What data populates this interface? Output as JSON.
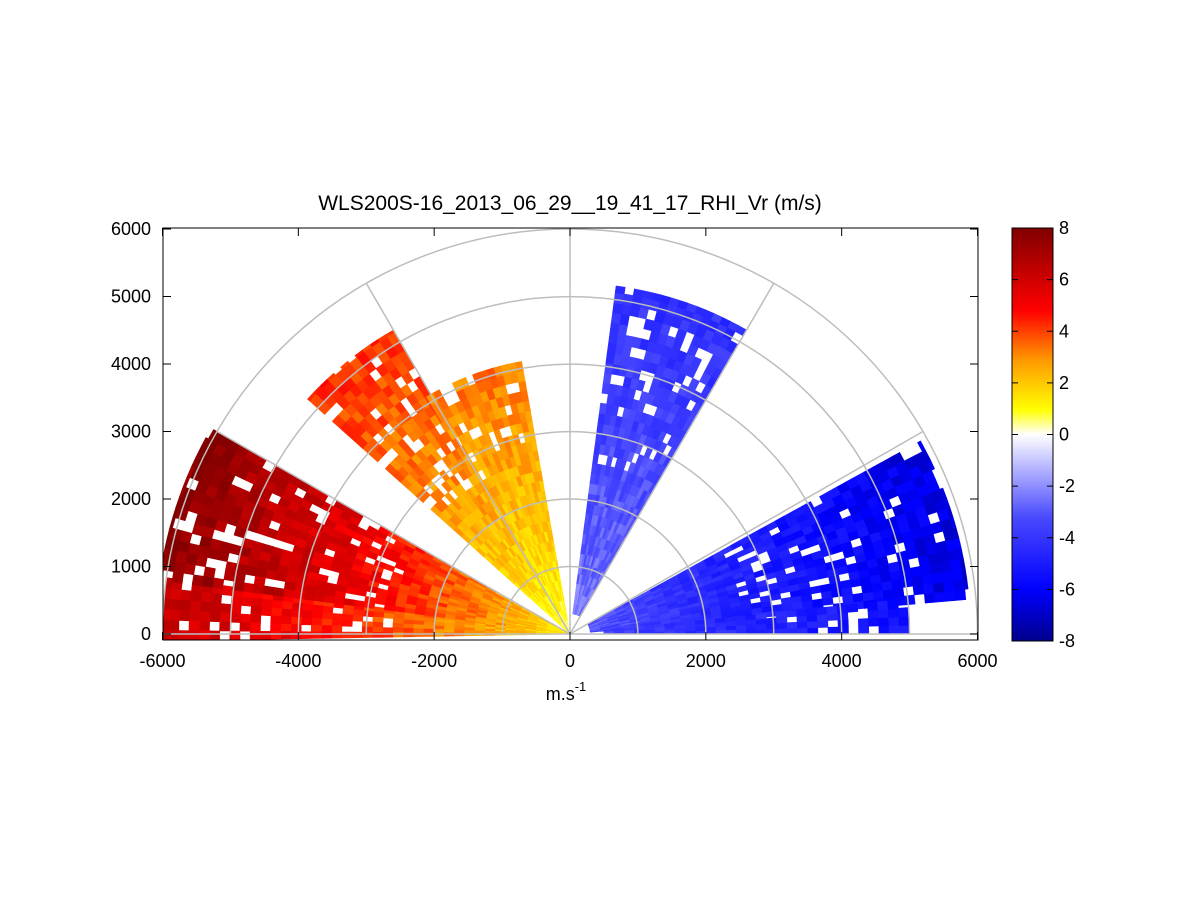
{
  "chart_data": {
    "type": "heatmap",
    "subtype": "polar-rhi-scan",
    "title": "WLS200S-16_2013_06_29__19_41_17_RHI_Vr (m/s)",
    "xlabel_base": "m.s",
    "xlabel_exponent": "-1",
    "ylabel": "",
    "xlim": [
      -6000,
      6000
    ],
    "ylim": [
      0,
      6000
    ],
    "x_ticks": [
      "-6000",
      "-4000",
      "-2000",
      "0",
      "2000",
      "4000",
      "6000"
    ],
    "y_ticks": [
      "0",
      "1000",
      "2000",
      "3000",
      "4000",
      "5000",
      "6000"
    ],
    "range_rings": [
      1000,
      2000,
      3000,
      4000,
      5000,
      6000
    ],
    "radial_lines_deg": [
      0,
      30,
      60,
      90,
      120,
      150,
      180
    ],
    "grid": true,
    "colorbar": {
      "position": "right",
      "range": [
        -8,
        8
      ],
      "ticks": [
        "-8",
        "-6",
        "-4",
        "-2",
        "0",
        "2",
        "4",
        "6",
        "8"
      ],
      "colormap": [
        "#00008b",
        "#0000ff",
        "#5a5aff",
        "#d9d9ff",
        "#ffffff",
        "#ffff00",
        "#ff8c00",
        "#ff0000",
        "#8b0000"
      ]
    },
    "sectors": [
      {
        "az_min": 172,
        "az_max": 180,
        "r_min": 0,
        "r_max": 6000,
        "vr_near": 1,
        "vr_far": 6.5
      },
      {
        "az_min": 150,
        "az_max": 172,
        "r_min": 0,
        "r_max": 6100,
        "vr_near": 1,
        "vr_far": 7.8
      },
      {
        "az_min": 120,
        "az_max": 138,
        "r_min": 0,
        "r_max": 5200,
        "vr_near": 0.5,
        "vr_far": 4.5
      },
      {
        "az_min": 100,
        "az_max": 120,
        "r_min": 0,
        "r_max": 4100,
        "vr_near": 0.5,
        "vr_far": 3.5
      },
      {
        "az_min": 60,
        "az_max": 82,
        "r_min": 300,
        "r_max": 5200,
        "vr_near": -2,
        "vr_far": -4.2
      },
      {
        "az_min": 5,
        "az_max": 28,
        "r_min": 300,
        "r_max": 5900,
        "vr_near": -2.5,
        "vr_far": -6.5
      },
      {
        "az_min": 0,
        "az_max": 5,
        "r_min": 500,
        "r_max": 5000,
        "vr_near": -3,
        "vr_far": -5.5
      }
    ]
  }
}
